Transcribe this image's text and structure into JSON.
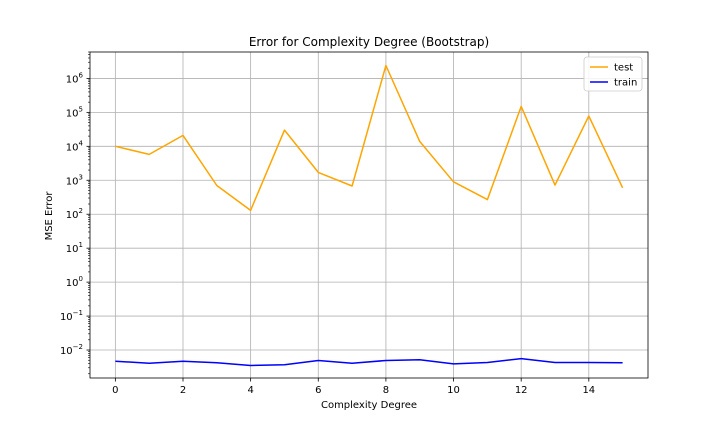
{
  "chart_data": {
    "type": "line",
    "title": "Error for Complexity Degree (Bootstrap)",
    "xlabel": "Complexity Degree",
    "ylabel": "MSE Error",
    "yscale": "log",
    "xlim": [
      -0.75,
      15.75
    ],
    "ylim": [
      0.0015,
      6000000
    ],
    "grid": true,
    "legend_position": "top-right",
    "x": [
      0,
      1,
      2,
      3,
      4,
      5,
      6,
      7,
      8,
      9,
      10,
      11,
      12,
      13,
      14,
      15
    ],
    "x_ticks": [
      0,
      2,
      4,
      6,
      8,
      10,
      12,
      14
    ],
    "x_tick_labels": [
      "0",
      "2",
      "4",
      "6",
      "8",
      "10",
      "12",
      "14"
    ],
    "y_ticks": [
      {
        "value": 0.01,
        "base": "10",
        "exp": "−2"
      },
      {
        "value": 0.1,
        "base": "10",
        "exp": "−1"
      },
      {
        "value": 1,
        "base": "10",
        "exp": "0"
      },
      {
        "value": 10,
        "base": "10",
        "exp": "1"
      },
      {
        "value": 100,
        "base": "10",
        "exp": "2"
      },
      {
        "value": 1000,
        "base": "10",
        "exp": "3"
      },
      {
        "value": 10000,
        "base": "10",
        "exp": "4"
      },
      {
        "value": 100000,
        "base": "10",
        "exp": "5"
      },
      {
        "value": 1000000,
        "base": "10",
        "exp": "6"
      }
    ],
    "series": [
      {
        "name": "test",
        "color": "#FFA500",
        "values": [
          10000,
          5800,
          21000,
          700,
          130,
          30000,
          1700,
          680,
          2400000,
          14000,
          900,
          270,
          150000,
          720,
          78000,
          600
        ]
      },
      {
        "name": "train",
        "color": "#0000FF",
        "values": [
          0.0047,
          0.0041,
          0.0047,
          0.0042,
          0.0035,
          0.0037,
          0.0049,
          0.0041,
          0.0049,
          0.0052,
          0.0039,
          0.0043,
          0.0056,
          0.0043,
          0.0043,
          0.0042
        ]
      }
    ]
  }
}
